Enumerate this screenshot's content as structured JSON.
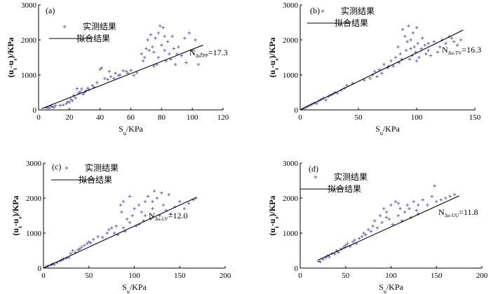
{
  "chart_data": [
    {
      "panel": "(a)",
      "type": "scatter",
      "xlabel": "S_u/KPa",
      "ylabel": "(u_t-u_s)/KPa",
      "xlim": [
        0,
        120
      ],
      "ylim": [
        0,
        3000
      ],
      "xticks": [
        0,
        20,
        40,
        60,
        80,
        100,
        120
      ],
      "yticks": [
        0,
        1000,
        2000,
        3000
      ],
      "legend": {
        "placement": "top-left",
        "points": "实测结果",
        "line": "拟合结果"
      },
      "fit": {
        "label_main": "N",
        "label_sub": "Δu-PP",
        "label_value": "=17.3",
        "slope": 17.3,
        "x_range": [
          2,
          107
        ]
      },
      "points": [
        [
          5,
          60
        ],
        [
          6,
          80
        ],
        [
          7,
          50
        ],
        [
          8,
          110
        ],
        [
          9,
          90
        ],
        [
          10,
          70
        ],
        [
          11,
          120
        ],
        [
          14,
          130
        ],
        [
          16,
          140
        ],
        [
          18,
          180
        ],
        [
          19,
          230
        ],
        [
          20,
          220
        ],
        [
          21,
          300
        ],
        [
          22,
          260
        ],
        [
          23,
          410
        ],
        [
          24,
          340
        ],
        [
          25,
          610
        ],
        [
          26,
          480
        ],
        [
          27,
          520
        ],
        [
          28,
          600
        ],
        [
          29,
          450
        ],
        [
          30,
          500
        ],
        [
          31,
          550
        ],
        [
          32,
          620
        ],
        [
          33,
          580
        ],
        [
          35,
          700
        ],
        [
          36,
          650
        ],
        [
          38,
          780
        ],
        [
          40,
          1160
        ],
        [
          41,
          1200
        ],
        [
          43,
          900
        ],
        [
          45,
          870
        ],
        [
          46,
          1100
        ],
        [
          47,
          950
        ],
        [
          49,
          900
        ],
        [
          50,
          1050
        ],
        [
          52,
          980
        ],
        [
          53,
          1000
        ],
        [
          55,
          1120
        ],
        [
          57,
          1100
        ],
        [
          58,
          1050
        ],
        [
          60,
          1130
        ],
        [
          62,
          990
        ],
        [
          64,
          1060
        ],
        [
          67,
          1600
        ],
        [
          68,
          1400
        ],
        [
          69,
          1500
        ],
        [
          70,
          1750
        ],
        [
          71,
          2000
        ],
        [
          72,
          1700
        ],
        [
          73,
          2150
        ],
        [
          74,
          1800
        ],
        [
          75,
          1650
        ],
        [
          76,
          2050
        ],
        [
          77,
          1300
        ],
        [
          78,
          2200
        ],
        [
          79,
          2400
        ],
        [
          80,
          1850
        ],
        [
          81,
          2350
        ],
        [
          82,
          1700
        ],
        [
          83,
          1400
        ],
        [
          84,
          1950
        ],
        [
          85,
          1600
        ],
        [
          86,
          1450
        ],
        [
          87,
          2100
        ],
        [
          88,
          1750
        ],
        [
          89,
          1300
        ],
        [
          90,
          1600
        ],
        [
          91,
          1800
        ],
        [
          93,
          1550
        ],
        [
          95,
          2050
        ],
        [
          96,
          1350
        ],
        [
          98,
          2200
        ],
        [
          100,
          1700
        ],
        [
          102,
          2000
        ],
        [
          104,
          1300
        ],
        [
          106,
          1600
        ],
        [
          78,
          1500
        ],
        [
          82,
          2100
        ],
        [
          75,
          1250
        ]
      ]
    },
    {
      "panel": "(b)",
      "type": "scatter",
      "xlabel": "S_u/KPa",
      "ylabel": "(u_t-u_s)/KPa",
      "xlim": [
        0,
        150
      ],
      "ylim": [
        0,
        3000
      ],
      "xticks": [
        0,
        50,
        100,
        150
      ],
      "yticks": [
        0,
        1000,
        2000,
        3000
      ],
      "legend": {
        "placement": "top-left",
        "points": "实测结果",
        "line": "拟合结果"
      },
      "fit": {
        "label_main": "N",
        "label_sub": "Δu-TV",
        "label_value": "=16.3",
        "slope": 16.3,
        "x_range": [
          0,
          140
        ]
      },
      "points": [
        [
          2,
          30
        ],
        [
          4,
          60
        ],
        [
          6,
          90
        ],
        [
          8,
          130
        ],
        [
          10,
          160
        ],
        [
          12,
          200
        ],
        [
          14,
          180
        ],
        [
          16,
          260
        ],
        [
          18,
          300
        ],
        [
          20,
          340
        ],
        [
          22,
          280
        ],
        [
          24,
          380
        ],
        [
          26,
          420
        ],
        [
          28,
          450
        ],
        [
          30,
          500
        ],
        [
          32,
          480
        ],
        [
          35,
          560
        ],
        [
          38,
          620
        ],
        [
          40,
          700
        ],
        [
          45,
          760
        ],
        [
          55,
          850
        ],
        [
          60,
          900
        ],
        [
          62,
          1000
        ],
        [
          64,
          1100
        ],
        [
          66,
          950
        ],
        [
          68,
          1150
        ],
        [
          70,
          1050
        ],
        [
          72,
          1300
        ],
        [
          75,
          1200
        ],
        [
          78,
          1400
        ],
        [
          80,
          1250
        ],
        [
          82,
          1500
        ],
        [
          84,
          1800
        ],
        [
          86,
          1600
        ],
        [
          88,
          2300
        ],
        [
          90,
          2100
        ],
        [
          91,
          1700
        ],
        [
          92,
          1950
        ],
        [
          93,
          2400
        ],
        [
          94,
          1450
        ],
        [
          95,
          2000
        ],
        [
          96,
          1550
        ],
        [
          97,
          2200
        ],
        [
          98,
          1800
        ],
        [
          99,
          1650
        ],
        [
          100,
          2350
        ],
        [
          101,
          1900
        ],
        [
          102,
          1500
        ],
        [
          104,
          1750
        ],
        [
          105,
          2050
        ],
        [
          107,
          1850
        ],
        [
          108,
          1600
        ],
        [
          110,
          1700
        ],
        [
          112,
          1550
        ],
        [
          115,
          1950
        ],
        [
          118,
          1650
        ],
        [
          120,
          1800
        ],
        [
          122,
          2000
        ],
        [
          125,
          1900
        ],
        [
          128,
          2100
        ],
        [
          130,
          2050
        ],
        [
          132,
          1950
        ],
        [
          135,
          1850
        ],
        [
          138,
          2000
        ],
        [
          85,
          1350
        ],
        [
          76,
          1250
        ],
        [
          87,
          1450
        ],
        [
          95,
          1750
        ],
        [
          100,
          1400
        ],
        [
          110,
          1900
        ]
      ]
    },
    {
      "panel": "(c)",
      "type": "scatter",
      "xlabel": "S_u/KPa",
      "ylabel": "(u_t-u_s)/KPa",
      "xlim": [
        0,
        200
      ],
      "ylim": [
        0,
        3000
      ],
      "xticks": [
        0,
        50,
        100,
        150,
        200
      ],
      "yticks": [
        0,
        1000,
        2000,
        3000
      ],
      "legend": {
        "placement": "top-left",
        "points": "实测结果",
        "line": "拟合结果"
      },
      "fit": {
        "label_main": "N",
        "label_sub": "Δu-LV",
        "label_value": "=12.0",
        "slope": 12.0,
        "x_range": [
          0,
          168
        ]
      },
      "points": [
        [
          3,
          40
        ],
        [
          5,
          60
        ],
        [
          8,
          90
        ],
        [
          10,
          120
        ],
        [
          12,
          100
        ],
        [
          15,
          150
        ],
        [
          18,
          200
        ],
        [
          20,
          230
        ],
        [
          22,
          260
        ],
        [
          25,
          280
        ],
        [
          28,
          300
        ],
        [
          30,
          420
        ],
        [
          32,
          500
        ],
        [
          35,
          450
        ],
        [
          38,
          520
        ],
        [
          40,
          550
        ],
        [
          42,
          600
        ],
        [
          45,
          650
        ],
        [
          48,
          700
        ],
        [
          50,
          750
        ],
        [
          52,
          720
        ],
        [
          55,
          820
        ],
        [
          60,
          900
        ],
        [
          65,
          880
        ],
        [
          70,
          1000
        ],
        [
          72,
          1100
        ],
        [
          75,
          1150
        ],
        [
          78,
          1000
        ],
        [
          80,
          1200
        ],
        [
          82,
          950
        ],
        [
          85,
          1800
        ],
        [
          86,
          1600
        ],
        [
          88,
          1900
        ],
        [
          90,
          1050
        ],
        [
          92,
          1400
        ],
        [
          95,
          1300
        ],
        [
          98,
          1500
        ],
        [
          100,
          1700
        ],
        [
          102,
          1200
        ],
        [
          105,
          1800
        ],
        [
          108,
          1600
        ],
        [
          110,
          1350
        ],
        [
          112,
          1900
        ],
        [
          115,
          2050
        ],
        [
          118,
          1400
        ],
        [
          120,
          1700
        ],
        [
          122,
          2200
        ],
        [
          125,
          2000
        ],
        [
          128,
          1500
        ],
        [
          130,
          2150
        ],
        [
          132,
          1800
        ],
        [
          135,
          1650
        ],
        [
          138,
          2100
        ],
        [
          140,
          1550
        ],
        [
          145,
          1750
        ],
        [
          150,
          1900
        ],
        [
          155,
          1700
        ],
        [
          160,
          1850
        ],
        [
          165,
          1950
        ],
        [
          168,
          2000
        ],
        [
          95,
          2050
        ],
        [
          105,
          1250
        ],
        [
          112,
          1500
        ],
        [
          120,
          1900
        ],
        [
          88,
          1150
        ]
      ]
    },
    {
      "panel": "(d)",
      "type": "scatter",
      "xlabel": "S_u/KPa",
      "ylabel": "(u_t-u_s)/KPa",
      "xlim": [
        0,
        200
      ],
      "ylim": [
        0,
        3000
      ],
      "xticks": [
        0,
        50,
        100,
        150,
        200
      ],
      "yticks": [
        0,
        1000,
        2000,
        3000
      ],
      "legend": {
        "placement": "top-left",
        "points": "实测结果",
        "line": "拟合结果"
      },
      "fit": {
        "label_main": "N",
        "label_sub": "Δu-UU",
        "label_value": "=11.8",
        "slope": 11.8,
        "x_range": [
          20,
          175
        ]
      },
      "points": [
        [
          20,
          200
        ],
        [
          22,
          180
        ],
        [
          25,
          250
        ],
        [
          28,
          300
        ],
        [
          30,
          350
        ],
        [
          32,
          320
        ],
        [
          35,
          420
        ],
        [
          38,
          400
        ],
        [
          40,
          500
        ],
        [
          42,
          450
        ],
        [
          45,
          550
        ],
        [
          48,
          600
        ],
        [
          50,
          650
        ],
        [
          52,
          700
        ],
        [
          55,
          620
        ],
        [
          58,
          750
        ],
        [
          60,
          800
        ],
        [
          62,
          700
        ],
        [
          65,
          850
        ],
        [
          68,
          900
        ],
        [
          70,
          1000
        ],
        [
          72,
          950
        ],
        [
          75,
          1100
        ],
        [
          78,
          1050
        ],
        [
          80,
          1200
        ],
        [
          82,
          1350
        ],
        [
          85,
          1150
        ],
        [
          88,
          1500
        ],
        [
          90,
          1300
        ],
        [
          92,
          1700
        ],
        [
          95,
          1600
        ],
        [
          98,
          1400
        ],
        [
          100,
          1800
        ],
        [
          102,
          1250
        ],
        [
          105,
          1900
        ],
        [
          108,
          1500
        ],
        [
          110,
          1700
        ],
        [
          112,
          1350
        ],
        [
          115,
          1600
        ],
        [
          118,
          1800
        ],
        [
          120,
          1700
        ],
        [
          122,
          1450
        ],
        [
          125,
          1900
        ],
        [
          128,
          1650
        ],
        [
          130,
          1800
        ],
        [
          135,
          1950
        ],
        [
          140,
          1800
        ],
        [
          145,
          2050
        ],
        [
          150,
          1900
        ],
        [
          155,
          1950
        ],
        [
          160,
          2000
        ],
        [
          165,
          2050
        ],
        [
          170,
          2100
        ],
        [
          148,
          2350
        ],
        [
          108,
          1850
        ],
        [
          95,
          1450
        ],
        [
          130,
          1550
        ]
      ]
    }
  ]
}
